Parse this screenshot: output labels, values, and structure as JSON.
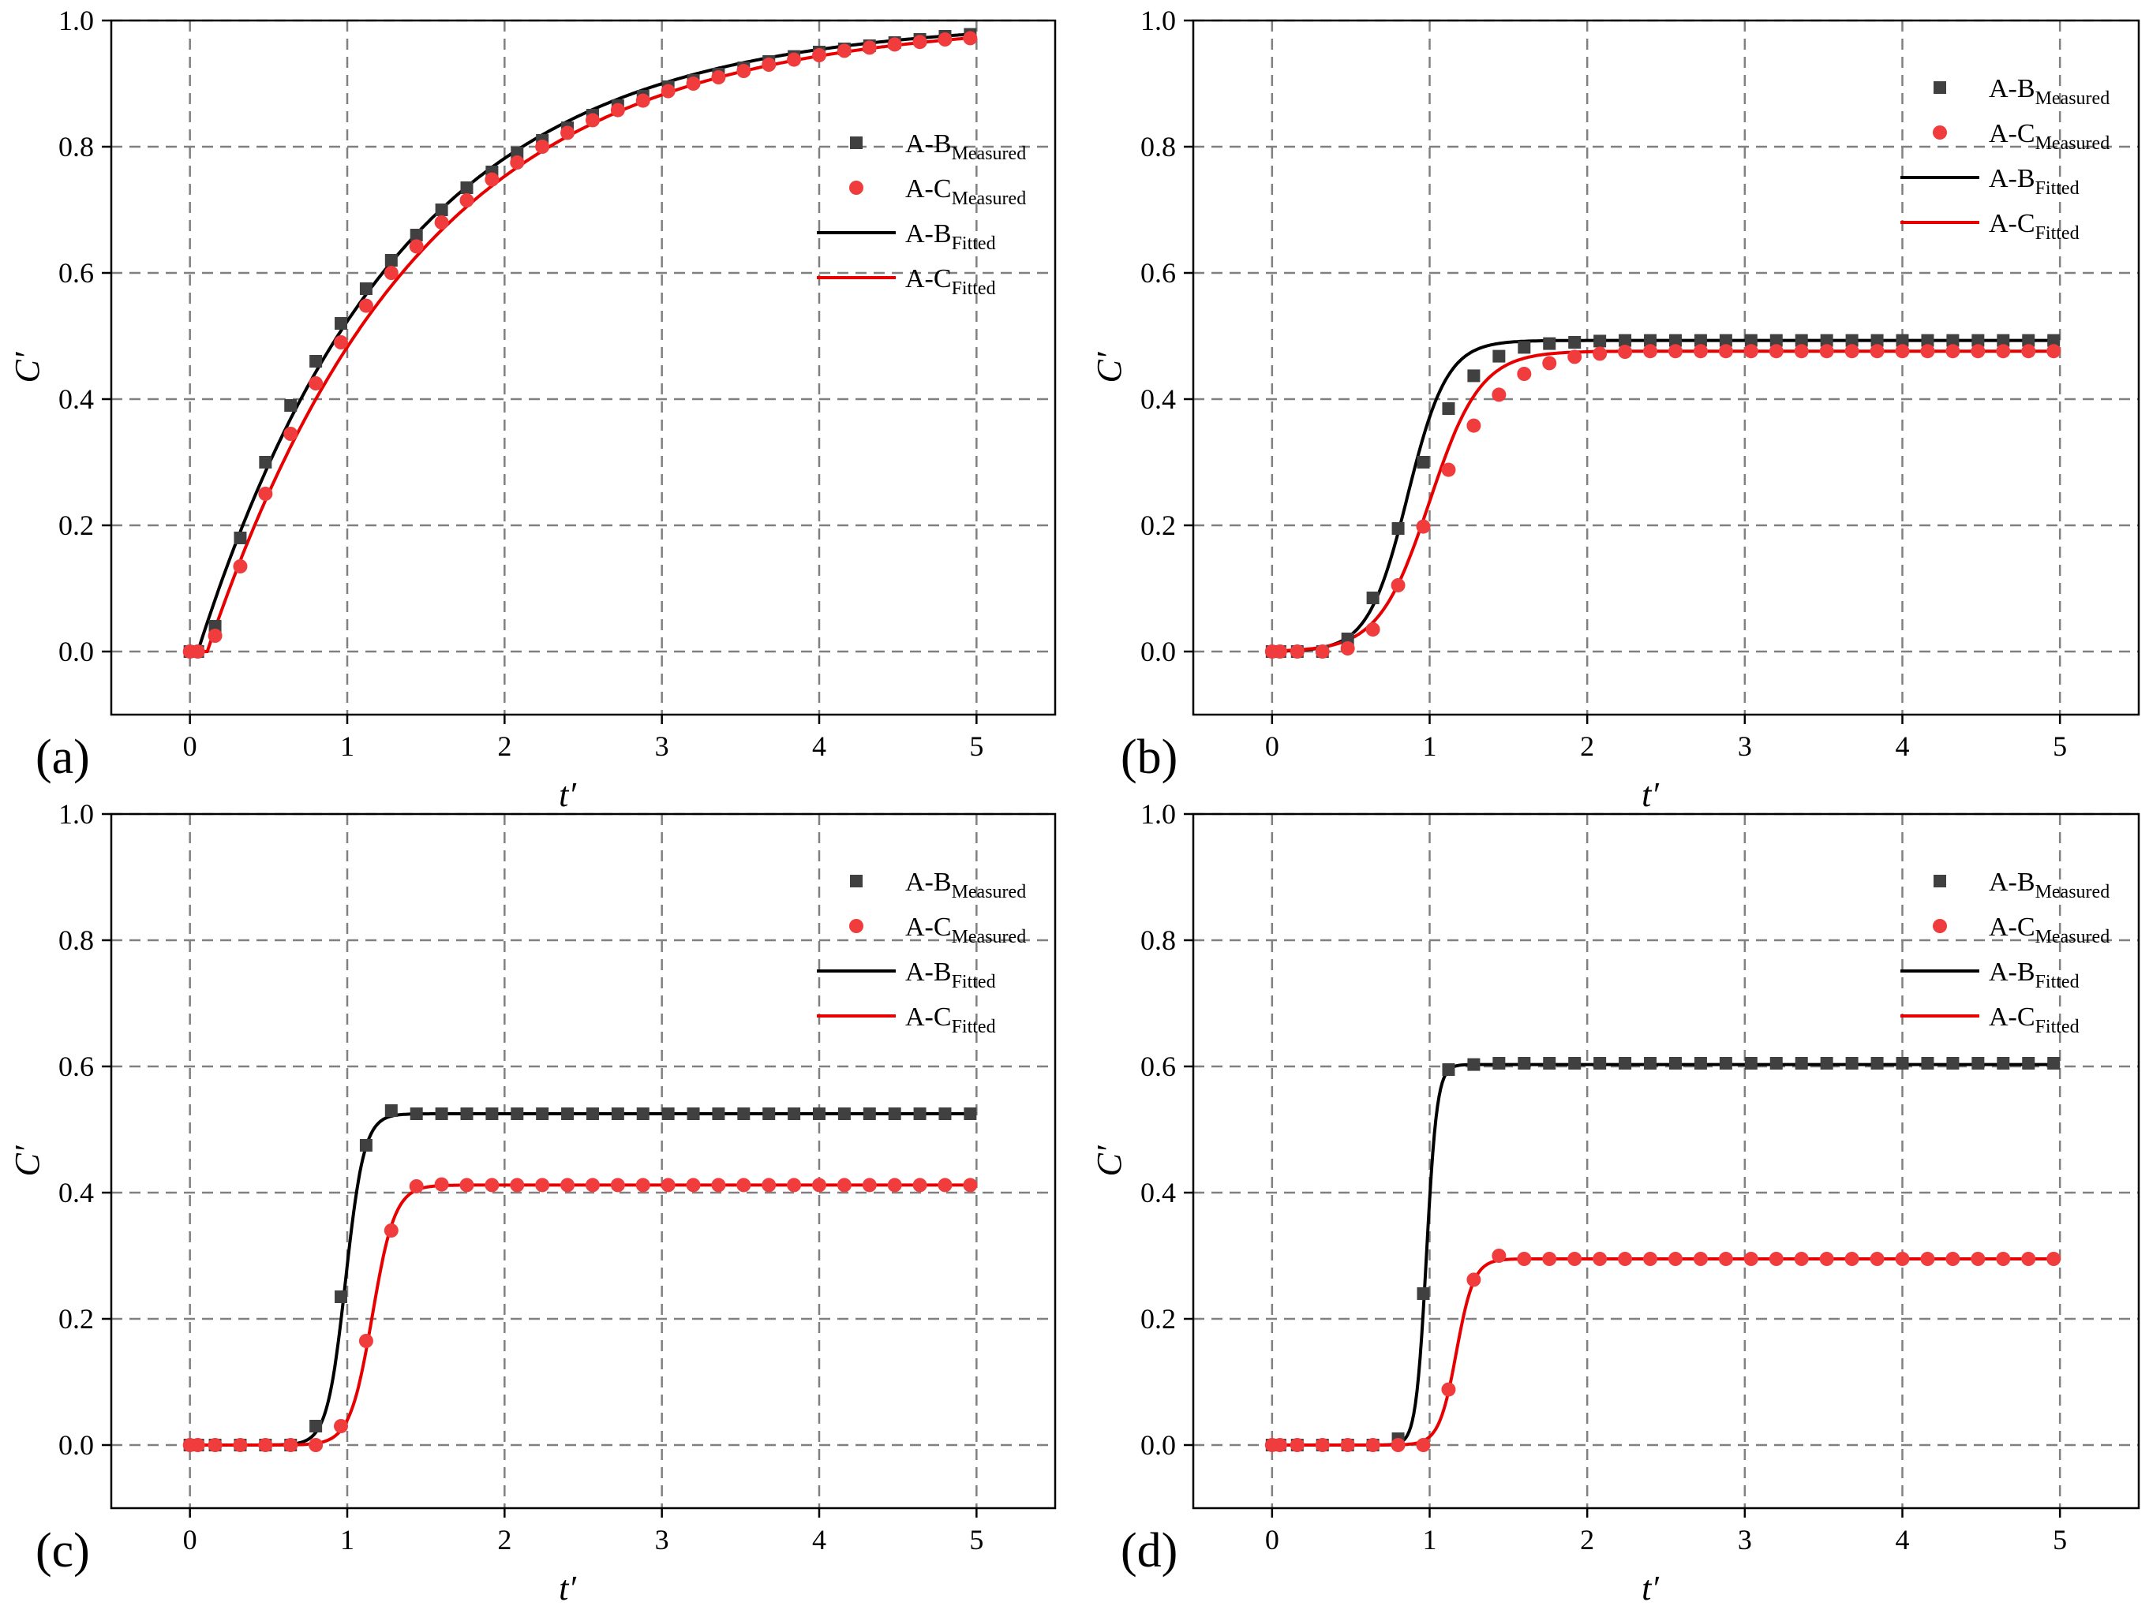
{
  "figure": {
    "x_tick_labels": [
      "0",
      "1",
      "2",
      "3",
      "4",
      "5"
    ],
    "y_tick_labels": [
      "0.0",
      "0.2",
      "0.4",
      "0.6",
      "0.8",
      "1.0"
    ]
  },
  "chart_data": [
    {
      "type": "scatter",
      "panel": "(a)",
      "xlabel": "t′",
      "ylabel": "C′",
      "xlim": [
        -0.5,
        5.5
      ],
      "ylim": [
        -0.1,
        1.0
      ],
      "grid": true,
      "legend_position": "top-right",
      "legend": [
        {
          "base": "A-B",
          "sub": "Measured",
          "kind": "square",
          "color": "#404040"
        },
        {
          "base": "A-C",
          "sub": "Measured",
          "kind": "circle",
          "color": "#f03c3c"
        },
        {
          "base": "A-B",
          "sub": "Fitted",
          "kind": "line",
          "color": "#000000"
        },
        {
          "base": "A-C",
          "sub": "Fitted",
          "kind": "line",
          "color": "#e80000"
        }
      ],
      "series": [
        {
          "name": "A-B Measured",
          "kind": "square",
          "color": "#404040",
          "x": [
            0,
            0.05,
            0.16,
            0.32,
            0.48,
            0.64,
            0.8,
            0.96,
            1.12,
            1.28,
            1.44,
            1.6,
            1.76,
            1.92,
            2.08,
            2.24,
            2.4,
            2.56,
            2.72,
            2.88,
            3.04,
            3.2,
            3.36,
            3.52,
            3.68,
            3.84,
            4.0,
            4.16,
            4.32,
            4.48,
            4.64,
            4.8,
            4.96
          ],
          "y": [
            0.0,
            0.0,
            0.04,
            0.18,
            0.3,
            0.39,
            0.46,
            0.52,
            0.575,
            0.62,
            0.66,
            0.7,
            0.735,
            0.76,
            0.79,
            0.81,
            0.83,
            0.85,
            0.865,
            0.88,
            0.895,
            0.905,
            0.915,
            0.925,
            0.935,
            0.943,
            0.95,
            0.955,
            0.96,
            0.965,
            0.97,
            0.975,
            0.978
          ]
        },
        {
          "name": "A-C Measured",
          "kind": "circle",
          "color": "#f03c3c",
          "x": [
            0,
            0.05,
            0.16,
            0.32,
            0.48,
            0.64,
            0.8,
            0.96,
            1.12,
            1.28,
            1.44,
            1.6,
            1.76,
            1.92,
            2.08,
            2.24,
            2.4,
            2.56,
            2.72,
            2.88,
            3.04,
            3.2,
            3.36,
            3.52,
            3.68,
            3.84,
            4.0,
            4.16,
            4.32,
            4.48,
            4.64,
            4.8,
            4.96
          ],
          "y": [
            0.0,
            0.0,
            0.025,
            0.135,
            0.25,
            0.345,
            0.425,
            0.49,
            0.548,
            0.6,
            0.642,
            0.68,
            0.715,
            0.748,
            0.775,
            0.8,
            0.822,
            0.842,
            0.858,
            0.873,
            0.888,
            0.9,
            0.91,
            0.92,
            0.93,
            0.938,
            0.945,
            0.952,
            0.957,
            0.962,
            0.966,
            0.97,
            0.972
          ]
        },
        {
          "name": "A-B Fitted",
          "kind": "line",
          "color": "#000000",
          "model": "exp",
          "params": {
            "A": 1.0,
            "k": 0.78,
            "t0": 0.05
          }
        },
        {
          "name": "A-C Fitted",
          "kind": "line",
          "color": "#e80000",
          "model": "exp",
          "params": {
            "A": 1.0,
            "k": 0.74,
            "t0": 0.11
          }
        }
      ]
    },
    {
      "type": "scatter",
      "panel": "(b)",
      "xlabel": "t′",
      "ylabel": "C′",
      "xlim": [
        -0.5,
        5.5
      ],
      "ylim": [
        -0.1,
        1.0
      ],
      "grid": true,
      "legend_position": "top-right",
      "legend": [
        {
          "base": "A-B",
          "sub": "Measured",
          "kind": "square",
          "color": "#404040"
        },
        {
          "base": "A-C",
          "sub": "Measured",
          "kind": "circle",
          "color": "#f03c3c"
        },
        {
          "base": "A-B",
          "sub": "Fitted",
          "kind": "line",
          "color": "#000000"
        },
        {
          "base": "A-C",
          "sub": "Fitted",
          "kind": "line",
          "color": "#e80000"
        }
      ],
      "series": [
        {
          "name": "A-B Measured",
          "kind": "square",
          "color": "#404040",
          "x": [
            0,
            0.05,
            0.16,
            0.32,
            0.48,
            0.64,
            0.8,
            0.96,
            1.12,
            1.28,
            1.44,
            1.6,
            1.76,
            1.92,
            2.08,
            2.24,
            2.4,
            2.56,
            2.72,
            2.88,
            3.04,
            3.2,
            3.36,
            3.52,
            3.68,
            3.84,
            4.0,
            4.16,
            4.32,
            4.48,
            4.64,
            4.8,
            4.96
          ],
          "y": [
            0.0,
            0.0,
            0.0,
            0.0,
            0.02,
            0.085,
            0.195,
            0.3,
            0.385,
            0.437,
            0.468,
            0.482,
            0.488,
            0.49,
            0.492,
            0.493,
            0.493,
            0.493,
            0.493,
            0.493,
            0.493,
            0.493,
            0.493,
            0.493,
            0.493,
            0.493,
            0.493,
            0.493,
            0.493,
            0.493,
            0.493,
            0.493,
            0.493
          ]
        },
        {
          "name": "A-C Measured",
          "kind": "circle",
          "color": "#f03c3c",
          "x": [
            0,
            0.05,
            0.16,
            0.32,
            0.48,
            0.64,
            0.8,
            0.96,
            1.12,
            1.28,
            1.44,
            1.6,
            1.76,
            1.92,
            2.08,
            2.24,
            2.4,
            2.56,
            2.72,
            2.88,
            3.04,
            3.2,
            3.36,
            3.52,
            3.68,
            3.84,
            4.0,
            4.16,
            4.32,
            4.48,
            4.64,
            4.8,
            4.96
          ],
          "y": [
            0.0,
            0.0,
            0.0,
            0.0,
            0.005,
            0.035,
            0.105,
            0.198,
            0.288,
            0.358,
            0.407,
            0.44,
            0.457,
            0.467,
            0.472,
            0.475,
            0.476,
            0.476,
            0.476,
            0.476,
            0.476,
            0.476,
            0.476,
            0.476,
            0.476,
            0.476,
            0.476,
            0.476,
            0.476,
            0.476,
            0.476,
            0.476,
            0.476
          ]
        },
        {
          "name": "A-B Fitted",
          "kind": "line",
          "color": "#000000",
          "model": "logistic",
          "params": {
            "A": 0.493,
            "k": 8.0,
            "t0": 0.86
          }
        },
        {
          "name": "A-C Fitted",
          "kind": "line",
          "color": "#e80000",
          "model": "logistic",
          "params": {
            "A": 0.476,
            "k": 6.2,
            "t0": 1.0
          }
        }
      ]
    },
    {
      "type": "scatter",
      "panel": "(c)",
      "xlabel": "t′",
      "ylabel": "C′",
      "xlim": [
        -0.5,
        5.5
      ],
      "ylim": [
        -0.1,
        1.0
      ],
      "grid": true,
      "legend_position": "top-right",
      "legend": [
        {
          "base": "A-B",
          "sub": "Measured",
          "kind": "square",
          "color": "#404040"
        },
        {
          "base": "A-C",
          "sub": "Measured",
          "kind": "circle",
          "color": "#f03c3c"
        },
        {
          "base": "A-B",
          "sub": "Fitted",
          "kind": "line",
          "color": "#000000"
        },
        {
          "base": "A-C",
          "sub": "Fitted",
          "kind": "line",
          "color": "#e80000"
        }
      ],
      "series": [
        {
          "name": "A-B Measured",
          "kind": "square",
          "color": "#404040",
          "x": [
            0,
            0.05,
            0.16,
            0.32,
            0.48,
            0.64,
            0.8,
            0.96,
            1.12,
            1.28,
            1.44,
            1.6,
            1.76,
            1.92,
            2.08,
            2.24,
            2.4,
            2.56,
            2.72,
            2.88,
            3.04,
            3.2,
            3.36,
            3.52,
            3.68,
            3.84,
            4.0,
            4.16,
            4.32,
            4.48,
            4.64,
            4.8,
            4.96
          ],
          "y": [
            0.0,
            0.0,
            0.0,
            0.0,
            0.0,
            0.0,
            0.03,
            0.235,
            0.475,
            0.53,
            0.525,
            0.525,
            0.525,
            0.525,
            0.525,
            0.525,
            0.525,
            0.525,
            0.525,
            0.525,
            0.525,
            0.525,
            0.525,
            0.525,
            0.525,
            0.525,
            0.525,
            0.525,
            0.525,
            0.525,
            0.525,
            0.525,
            0.525
          ]
        },
        {
          "name": "A-C Measured",
          "kind": "circle",
          "color": "#f03c3c",
          "x": [
            0,
            0.05,
            0.16,
            0.32,
            0.48,
            0.64,
            0.8,
            0.96,
            1.12,
            1.28,
            1.44,
            1.6,
            1.76,
            1.92,
            2.08,
            2.24,
            2.4,
            2.56,
            2.72,
            2.88,
            3.04,
            3.2,
            3.36,
            3.52,
            3.68,
            3.84,
            4.0,
            4.16,
            4.32,
            4.48,
            4.64,
            4.8,
            4.96
          ],
          "y": [
            0.0,
            0.0,
            0.0,
            0.0,
            0.0,
            0.0,
            0.0,
            0.03,
            0.165,
            0.34,
            0.41,
            0.413,
            0.412,
            0.412,
            0.412,
            0.412,
            0.412,
            0.412,
            0.412,
            0.412,
            0.412,
            0.412,
            0.412,
            0.412,
            0.412,
            0.412,
            0.412,
            0.412,
            0.412,
            0.412,
            0.412,
            0.412,
            0.412
          ]
        },
        {
          "name": "A-B Fitted",
          "kind": "line",
          "color": "#000000",
          "model": "logistic",
          "params": {
            "A": 0.525,
            "k": 17.0,
            "t0": 0.99
          }
        },
        {
          "name": "A-C Fitted",
          "kind": "line",
          "color": "#e80000",
          "model": "logistic",
          "params": {
            "A": 0.412,
            "k": 14.0,
            "t0": 1.16
          }
        }
      ]
    },
    {
      "type": "scatter",
      "panel": "(d)",
      "xlabel": "t′",
      "ylabel": "C′",
      "xlim": [
        -0.5,
        5.5
      ],
      "ylim": [
        -0.1,
        1.0
      ],
      "grid": true,
      "legend_position": "top-right",
      "legend": [
        {
          "base": "A-B",
          "sub": "Measured",
          "kind": "square",
          "color": "#404040"
        },
        {
          "base": "A-C",
          "sub": "Measured",
          "kind": "circle",
          "color": "#f03c3c"
        },
        {
          "base": "A-B",
          "sub": "Fitted",
          "kind": "line",
          "color": "#000000"
        },
        {
          "base": "A-C",
          "sub": "Fitted",
          "kind": "line",
          "color": "#e80000"
        }
      ],
      "series": [
        {
          "name": "A-B Measured",
          "kind": "square",
          "color": "#404040",
          "x": [
            0,
            0.05,
            0.16,
            0.32,
            0.48,
            0.64,
            0.8,
            0.96,
            1.12,
            1.28,
            1.44,
            1.6,
            1.76,
            1.92,
            2.08,
            2.24,
            2.4,
            2.56,
            2.72,
            2.88,
            3.04,
            3.2,
            3.36,
            3.52,
            3.68,
            3.84,
            4.0,
            4.16,
            4.32,
            4.48,
            4.64,
            4.8,
            4.96
          ],
          "y": [
            0.0,
            0.0,
            0.0,
            0.0,
            0.0,
            0.0,
            0.01,
            0.24,
            0.595,
            0.603,
            0.605,
            0.605,
            0.605,
            0.605,
            0.605,
            0.605,
            0.605,
            0.605,
            0.605,
            0.605,
            0.605,
            0.605,
            0.605,
            0.605,
            0.605,
            0.605,
            0.605,
            0.605,
            0.605,
            0.605,
            0.605,
            0.605,
            0.605
          ]
        },
        {
          "name": "A-C Measured",
          "kind": "circle",
          "color": "#f03c3c",
          "x": [
            0,
            0.05,
            0.16,
            0.32,
            0.48,
            0.64,
            0.8,
            0.96,
            1.12,
            1.28,
            1.44,
            1.6,
            1.76,
            1.92,
            2.08,
            2.24,
            2.4,
            2.56,
            2.72,
            2.88,
            3.04,
            3.2,
            3.36,
            3.52,
            3.68,
            3.84,
            4.0,
            4.16,
            4.32,
            4.48,
            4.64,
            4.8,
            4.96
          ],
          "y": [
            0.0,
            0.0,
            0.0,
            0.0,
            0.0,
            0.0,
            0.0,
            0.0,
            0.088,
            0.262,
            0.3,
            0.295,
            0.295,
            0.295,
            0.295,
            0.295,
            0.295,
            0.295,
            0.295,
            0.295,
            0.295,
            0.295,
            0.295,
            0.295,
            0.295,
            0.295,
            0.295,
            0.295,
            0.295,
            0.295,
            0.295,
            0.295,
            0.295
          ]
        },
        {
          "name": "A-B Fitted",
          "kind": "line",
          "color": "#000000",
          "model": "logistic",
          "params": {
            "A": 0.603,
            "k": 30.0,
            "t0": 0.98
          }
        },
        {
          "name": "A-C Fitted",
          "kind": "line",
          "color": "#e80000",
          "model": "logistic",
          "params": {
            "A": 0.295,
            "k": 18.0,
            "t0": 1.17
          }
        }
      ]
    }
  ]
}
